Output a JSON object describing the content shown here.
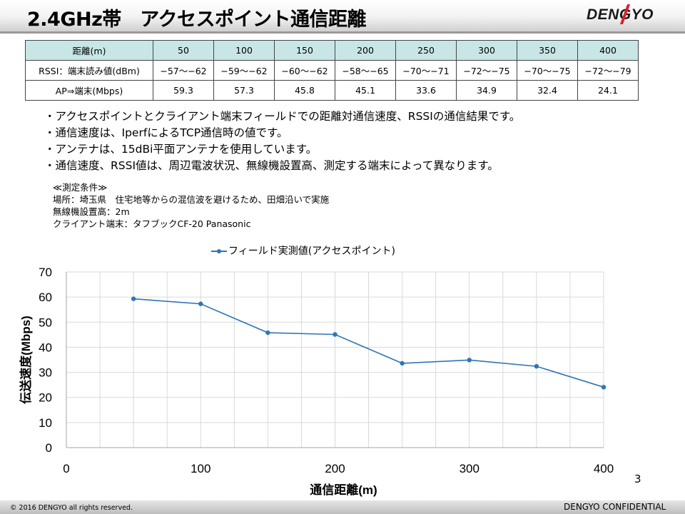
{
  "header": {
    "title": "2.4GHz帯　アクセスポイント通信距離",
    "logo_text": "DENGYO"
  },
  "table": {
    "rows": [
      {
        "label": "距離(m)",
        "values": [
          "50",
          "100",
          "150",
          "200",
          "250",
          "300",
          "350",
          "400"
        ]
      },
      {
        "label": "RSSI：端末読み値(dBm)",
        "values": [
          "−57〜−62",
          "−59〜−62",
          "−60〜−62",
          "−58〜−65",
          "−70〜−71",
          "−72〜−75",
          "−70〜−75",
          "−72〜−79"
        ]
      },
      {
        "label": "AP⇒端末(Mbps)",
        "values": [
          "59.3",
          "57.3",
          "45.8",
          "45.1",
          "33.6",
          "34.9",
          "32.4",
          "24.1"
        ]
      }
    ]
  },
  "notes": [
    "・アクセスポイントとクライアント端末フィールドでの距離対通信速度、RSSIの通信結果です。",
    "・通信速度は、IperfによるTCP通信時の値です。",
    "・アンテナは、15dBi平面アンテナを使用しています。",
    "・通信速度、RSSI値は、周辺電波状況、無線機設置高、測定する端末によって異なります。"
  ],
  "conditions": [
    "≪測定条件≫",
    "場所：埼玉県　住宅地等からの混信波を避けるため、田畑沿いで実施",
    "無線機設置高：2m",
    "クライアント端末：タフブックCF-20 Panasonic"
  ],
  "chart_data": {
    "type": "line",
    "series": [
      {
        "name": "フィールド実測値(アクセスポイント)",
        "x": [
          50,
          100,
          150,
          200,
          250,
          300,
          350,
          400
        ],
        "values": [
          59.3,
          57.3,
          45.8,
          45.1,
          33.6,
          34.9,
          32.4,
          24.1
        ],
        "color": "#2e75b6"
      }
    ],
    "xlabel": "通信距離(m)",
    "ylabel": "伝送速度(Mbps)",
    "xlim": [
      0,
      400
    ],
    "ylim": [
      0,
      70
    ],
    "xticks": [
      0,
      100,
      200,
      300,
      400
    ],
    "yticks": [
      0,
      10,
      20,
      30,
      40,
      50,
      60,
      70
    ],
    "grid": true,
    "legend_position": "top"
  },
  "page_number": "3",
  "footer": {
    "copyright": "© 2016 DENGYO  all rights reserved.",
    "confidential": "DENGYO CONFIDENTIAL"
  }
}
